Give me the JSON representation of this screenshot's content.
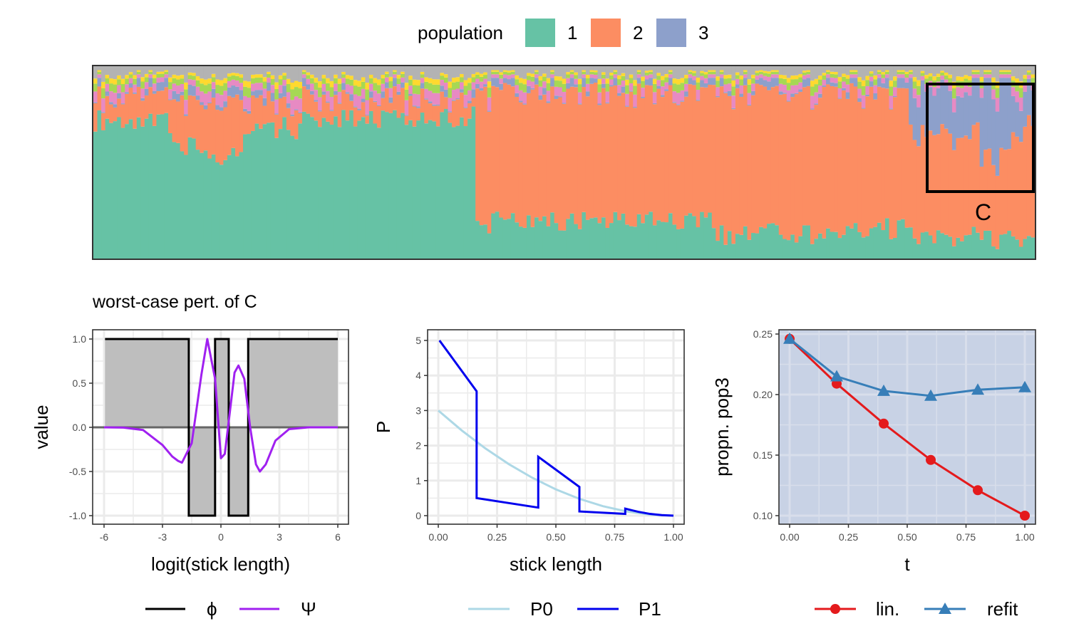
{
  "figure": {
    "legend_population": {
      "title": "population",
      "entries": [
        {
          "label": "1",
          "color": "#66c2a5"
        },
        {
          "label": "2",
          "color": "#fc8d62"
        },
        {
          "label": "3",
          "color": "#8da0cb"
        }
      ]
    },
    "structure_plot": {
      "highlight_label": "C",
      "minor_colors": [
        "#e78ac3",
        "#a6d854",
        "#ffd92f",
        "#b3b3b3"
      ]
    },
    "section_title": "worst-case pert. of C"
  },
  "chart_data": [
    {
      "id": "structure",
      "type": "bar",
      "stacked": true,
      "note_type": "admixture proportions per individual",
      "series": [
        {
          "name": "1",
          "color": "#66c2a5"
        },
        {
          "name": "2",
          "color": "#fc8d62"
        },
        {
          "name": "3",
          "color": "#8da0cb"
        }
      ],
      "segments": [
        {
          "n": 10,
          "pop1": 0.72,
          "pop2": 0.12,
          "pop3": 0.02
        },
        {
          "n": 10,
          "pop1": 0.7,
          "pop2": 0.14,
          "pop3": 0.02
        },
        {
          "n": 10,
          "pop1": 0.58,
          "pop2": 0.25,
          "pop3": 0.03
        },
        {
          "n": 8,
          "pop1": 0.53,
          "pop2": 0.28,
          "pop3": 0.04
        },
        {
          "n": 14,
          "pop1": 0.68,
          "pop2": 0.14,
          "pop3": 0.03
        },
        {
          "n": 45,
          "pop1": 0.74,
          "pop2": 0.09,
          "pop3": 0.02
        },
        {
          "n": 30,
          "pop1": 0.19,
          "pop2": 0.68,
          "pop3": 0.02
        },
        {
          "n": 30,
          "pop1": 0.21,
          "pop2": 0.66,
          "pop3": 0.02
        },
        {
          "n": 30,
          "pop1": 0.13,
          "pop2": 0.74,
          "pop3": 0.02
        },
        {
          "n": 20,
          "pop1": 0.16,
          "pop2": 0.71,
          "pop3": 0.03
        },
        {
          "n": 18,
          "pop1": 0.11,
          "pop2": 0.54,
          "pop3": 0.22
        },
        {
          "n": 8,
          "pop1": 0.1,
          "pop2": 0.43,
          "pop3": 0.36
        },
        {
          "n": 6,
          "pop1": 0.12,
          "pop2": 0.58,
          "pop3": 0.19
        }
      ]
    },
    {
      "id": "phi_psi",
      "type": "line",
      "xlabel": "logit(stick length)",
      "ylabel": "value",
      "xlim": [
        -6,
        6
      ],
      "ylim": [
        -1,
        1
      ],
      "xticks": [
        "-6",
        "-3",
        "0",
        "3",
        "6"
      ],
      "yticks": [
        "-1.0",
        "-0.5",
        "0.0",
        "0.5",
        "1.0"
      ],
      "series": [
        {
          "name": "ϕ",
          "color": "#000000",
          "type": "step",
          "x": [
            -5.95,
            -1.65,
            -1.65,
            -0.3,
            -0.3,
            0.4,
            0.4,
            1.4,
            1.4,
            6.0
          ],
          "y": [
            1,
            1,
            -1,
            -1,
            1,
            1,
            -1,
            -1,
            1,
            1
          ]
        },
        {
          "name": "Ψ",
          "color": "#a020f0",
          "x": [
            -6,
            -5,
            -4,
            -3,
            -2.5,
            -2.2,
            -2,
            -1.5,
            -1,
            -0.7,
            -0.3,
            0,
            0.2,
            0.5,
            0.7,
            0.9,
            1.2,
            1.5,
            1.8,
            2.0,
            2.3,
            2.8,
            3.5,
            4.5,
            6
          ],
          "y": [
            0,
            -0.003,
            -0.03,
            -0.2,
            -0.33,
            -0.38,
            -0.4,
            -0.18,
            0.6,
            1.0,
            0.55,
            -0.35,
            -0.3,
            0.25,
            0.62,
            0.7,
            0.55,
            0.0,
            -0.42,
            -0.5,
            -0.42,
            -0.15,
            -0.02,
            0,
            0
          ]
        }
      ]
    },
    {
      "id": "prior_densities",
      "type": "line",
      "xlabel": "stick length",
      "ylabel": "P",
      "xlim": [
        0,
        1
      ],
      "ylim": [
        0,
        5
      ],
      "xticks": [
        "0.00",
        "0.25",
        "0.50",
        "0.75",
        "1.00"
      ],
      "yticks": [
        "0",
        "1",
        "2",
        "3",
        "4",
        "5"
      ],
      "series": [
        {
          "name": "P0",
          "color": "#add8e6",
          "x": [
            0,
            0.1,
            0.2,
            0.3,
            0.4,
            0.5,
            0.6,
            0.7,
            0.8,
            0.9,
            1.0
          ],
          "y": [
            3.0,
            2.43,
            1.92,
            1.47,
            1.08,
            0.75,
            0.48,
            0.27,
            0.12,
            0.03,
            0.0
          ]
        },
        {
          "name": "P1",
          "color": "#0000ee",
          "x": [
            0.005,
            0.163,
            0.163,
            0.425,
            0.425,
            0.6,
            0.6,
            0.795,
            0.795,
            0.85,
            0.9,
            0.95,
            1.0
          ],
          "y": [
            5.0,
            3.55,
            0.5,
            0.23,
            1.68,
            0.82,
            0.12,
            0.05,
            0.2,
            0.11,
            0.05,
            0.015,
            0.0
          ]
        }
      ]
    },
    {
      "id": "propn_pop3",
      "type": "line",
      "xlabel": "t",
      "ylabel": "propn. pop3",
      "xlim": [
        0,
        1
      ],
      "ylim": [
        0.1,
        0.25
      ],
      "xticks": [
        "0.00",
        "0.25",
        "0.50",
        "0.75",
        "1.00"
      ],
      "yticks": [
        "0.10",
        "0.15",
        "0.20",
        "0.25"
      ],
      "series": [
        {
          "name": "lin.",
          "color": "#e41a1c",
          "marker": "circle",
          "x": [
            0,
            0.2,
            0.4,
            0.6,
            0.8,
            1.0
          ],
          "y": [
            0.246,
            0.209,
            0.176,
            0.146,
            0.121,
            0.1
          ]
        },
        {
          "name": "refit",
          "color": "#377eb8",
          "marker": "triangle",
          "x": [
            0,
            0.2,
            0.4,
            0.6,
            0.8,
            1.0
          ],
          "y": [
            0.246,
            0.215,
            0.203,
            0.199,
            0.204,
            0.206
          ]
        }
      ]
    }
  ]
}
